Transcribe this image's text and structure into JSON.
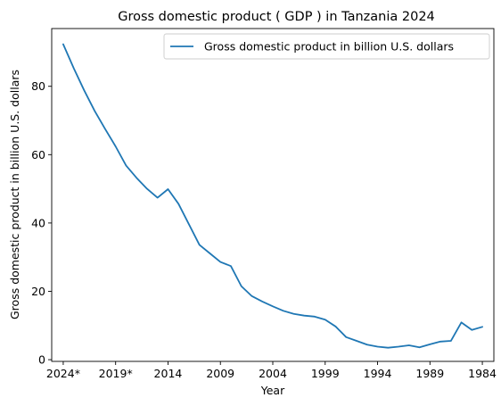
{
  "chart_data": {
    "type": "line",
    "title": "Gross domestic product ( GDP ) in Tanzania 2024",
    "xlabel": "Year",
    "ylabel": "Gross domestic product in billion U.S. dollars",
    "x_direction": "descending",
    "xlim": [
      2025.1,
      1982.9
    ],
    "ylim": [
      -0.5,
      96.9
    ],
    "yticks": [
      0,
      20,
      40,
      60,
      80
    ],
    "xticks": [
      {
        "x": 2024,
        "label": "2024*"
      },
      {
        "x": 2019,
        "label": "2019*"
      },
      {
        "x": 2014,
        "label": "2014"
      },
      {
        "x": 2009,
        "label": "2009"
      },
      {
        "x": 2004,
        "label": "2004"
      },
      {
        "x": 1999,
        "label": "1999"
      },
      {
        "x": 1994,
        "label": "1994"
      },
      {
        "x": 1989,
        "label": "1989"
      },
      {
        "x": 1984,
        "label": "1984"
      }
    ],
    "legend_position": "top-right",
    "grid": false,
    "color": "#1f77b4",
    "series": [
      {
        "name": "Gross domestic product in billion U.S. dollars",
        "x": [
          2024,
          2023,
          2022,
          2021,
          2020,
          2019,
          2018,
          2017,
          2016,
          2015,
          2014,
          2013,
          2012,
          2011,
          2010,
          2009,
          2008,
          2007,
          2006,
          2005,
          2004,
          2003,
          2002,
          2001,
          2000,
          1999,
          1998,
          1997,
          1996,
          1995,
          1994,
          1993,
          1992,
          1991,
          1990,
          1989,
          1988,
          1987,
          1986,
          1985,
          1984
        ],
        "y": [
          92.3,
          85.3,
          78.8,
          72.8,
          67.5,
          62.4,
          56.8,
          53.2,
          50.0,
          47.4,
          49.9,
          45.6,
          39.6,
          33.6,
          31.1,
          28.6,
          27.4,
          21.5,
          18.6,
          17.0,
          15.6,
          14.3,
          13.4,
          12.9,
          12.6,
          11.7,
          9.7,
          6.6,
          5.5,
          4.4,
          3.8,
          3.5,
          3.8,
          4.2,
          3.6,
          4.5,
          5.3,
          5.5,
          10.9,
          8.7,
          9.6
        ]
      }
    ]
  }
}
